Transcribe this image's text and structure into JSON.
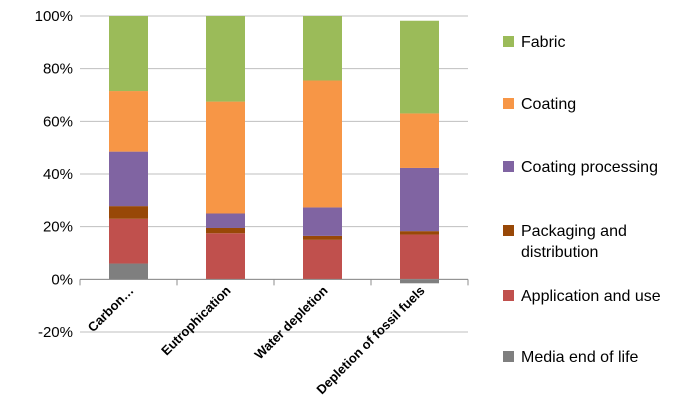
{
  "chart_data": {
    "type": "bar",
    "stacked": true,
    "categories": [
      "Carbon…",
      "Eutrophication",
      "Water depletion",
      "Depletion of fossil fuels"
    ],
    "series": [
      {
        "name": "Media end of life",
        "color": "#7f7f7f",
        "values": [
          6,
          0,
          0,
          -1.5
        ]
      },
      {
        "name": "Application and use",
        "color": "#c0504d",
        "values": [
          17,
          17.5,
          15,
          17
        ]
      },
      {
        "name": "Packaging and distribution",
        "color": "#984807",
        "values": [
          4.8,
          2,
          1.5,
          1.3
        ]
      },
      {
        "name": "Coating processing",
        "color": "#8064a2",
        "values": [
          20.7,
          5.5,
          10.8,
          24
        ]
      },
      {
        "name": "Coating",
        "color": "#f79646",
        "values": [
          23,
          42.5,
          48.2,
          20.7
        ]
      },
      {
        "name": "Fabric",
        "color": "#9bbb59",
        "values": [
          28.5,
          32.5,
          24.5,
          35.2
        ]
      }
    ],
    "legend_order": [
      "Fabric",
      "Coating",
      "Coating processing",
      "Packaging and distribution",
      "Application and use",
      "Media end of life"
    ],
    "yticks": [
      "-20%",
      "0%",
      "20%",
      "40%",
      "60%",
      "80%",
      "100%"
    ],
    "ytick_values": [
      -20,
      0,
      20,
      40,
      60,
      80,
      100
    ],
    "ylim": [
      -20,
      100
    ],
    "grid": true,
    "legend_position": "right",
    "title": "",
    "xlabel": "",
    "ylabel": ""
  }
}
